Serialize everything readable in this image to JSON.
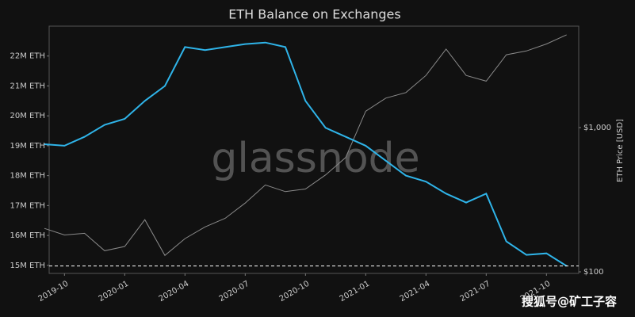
{
  "chart_data": {
    "type": "line",
    "title": "ETH Balance on Exchanges",
    "watermark": "glassnode",
    "source_watermark": "搜狐号@矿工子容",
    "y2label": "ETH Price [USD]",
    "x": [
      "2019-09",
      "2019-10",
      "2019-11",
      "2019-12",
      "2020-01",
      "2020-02",
      "2020-03",
      "2020-04",
      "2020-05",
      "2020-06",
      "2020-07",
      "2020-08",
      "2020-09",
      "2020-10",
      "2020-11",
      "2020-12",
      "2021-01",
      "2021-02",
      "2021-03",
      "2021-04",
      "2021-05",
      "2021-06",
      "2021-07",
      "2021-08",
      "2021-09",
      "2021-10",
      "2021-11"
    ],
    "xlim": [
      "2019-09",
      "2021-12"
    ],
    "xticks": [
      "2019-10",
      "2020-01",
      "2020-04",
      "2020-07",
      "2020-10",
      "2021-01",
      "2021-04",
      "2021-07",
      "2021-10"
    ],
    "series": [
      {
        "name": "ETH Balance",
        "color": "#2fb4e9",
        "axis": "y",
        "values": [
          19050000,
          19000000,
          19300000,
          19700000,
          19900000,
          20500000,
          21000000,
          22300000,
          22200000,
          22300000,
          22400000,
          22450000,
          22300000,
          20500000,
          19600000,
          19300000,
          19000000,
          18500000,
          18000000,
          17800000,
          17400000,
          17100000,
          17400000,
          15800000,
          15350000,
          15400000,
          14980000
        ]
      },
      {
        "name": "ETH Price",
        "color": "#8a8a8a",
        "axis": "y2",
        "values": [
          200,
          180,
          185,
          140,
          150,
          230,
          130,
          170,
          205,
          235,
          300,
          400,
          360,
          375,
          470,
          620,
          1300,
          1600,
          1750,
          2300,
          3500,
          2300,
          2100,
          3200,
          3400,
          3800,
          4400
        ]
      }
    ],
    "ylim": [
      14730000,
      23000000
    ],
    "yticks": [
      {
        "value": 15000000,
        "label": "15M ETH"
      },
      {
        "value": 16000000,
        "label": "16M ETH"
      },
      {
        "value": 17000000,
        "label": "17M ETH"
      },
      {
        "value": 18000000,
        "label": "18M ETH"
      },
      {
        "value": 19000000,
        "label": "19M ETH"
      },
      {
        "value": 20000000,
        "label": "20M ETH"
      },
      {
        "value": 21000000,
        "label": "21M ETH"
      },
      {
        "value": 22000000,
        "label": "22M ETH"
      }
    ],
    "y2lim": [
      97.5,
      5050
    ],
    "y2log": true,
    "y2ticks": [
      {
        "value": 100,
        "label": "$100"
      },
      {
        "value": 1000,
        "label": "$1,000"
      }
    ]
  }
}
